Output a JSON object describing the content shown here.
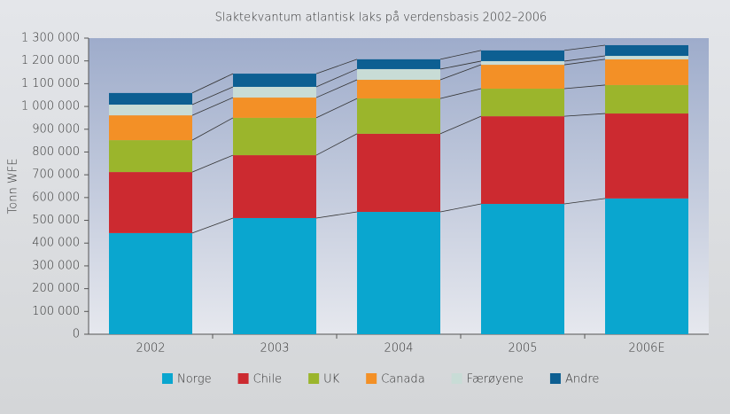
{
  "chart_data": {
    "type": "stacked_bar",
    "title": "Slaktekvantum atlantisk laks på verdensbasis 2002–2006",
    "y_label": "Tonn WFE",
    "categories": [
      "2002",
      "2003",
      "2004",
      "2005",
      "2006E"
    ],
    "series": [
      {
        "name": "Norge",
        "color": "#0aa6cf",
        "values": [
          444000,
          510000,
          537000,
          572000,
          596000
        ]
      },
      {
        "name": "Chile",
        "color": "#cc2a30",
        "values": [
          268000,
          276000,
          343000,
          385000,
          373000
        ]
      },
      {
        "name": "UK",
        "color": "#9bb52c",
        "values": [
          140000,
          164000,
          155000,
          121000,
          125000
        ]
      },
      {
        "name": "Canada",
        "color": "#f39026",
        "values": [
          109000,
          89000,
          82000,
          105000,
          113000
        ]
      },
      {
        "name": "Færøyene",
        "color": "#c8dcd6",
        "values": [
          47000,
          47000,
          47000,
          16000,
          15000
        ]
      },
      {
        "name": "Andre",
        "color": "#0d5f92",
        "values": [
          51000,
          58000,
          43000,
          47000,
          47000
        ]
      }
    ],
    "ylim": [
      0,
      1300000
    ],
    "yticks": [
      0,
      {
        "value": 100000,
        "label": "100 000"
      },
      {
        "value": 200000,
        "label": "200 000"
      },
      {
        "value": 300000,
        "label": "300 000"
      },
      {
        "value": 400000,
        "label": "400 000"
      },
      {
        "value": 500000,
        "label": "500 000"
      },
      {
        "value": 600000,
        "label": "600 000"
      },
      {
        "value": 700000,
        "label": "700 000"
      },
      {
        "value": 800000,
        "label": "800 000"
      },
      {
        "value": 900000,
        "label": "900 000"
      },
      {
        "value": 1000000,
        "label": "1 000 000"
      },
      {
        "value": 1100000,
        "label": "1 100 000"
      },
      {
        "value": 1200000,
        "label": "1 200 000"
      },
      {
        "value": 1300000,
        "label": "1 300 000"
      }
    ],
    "legend": "bottom"
  }
}
